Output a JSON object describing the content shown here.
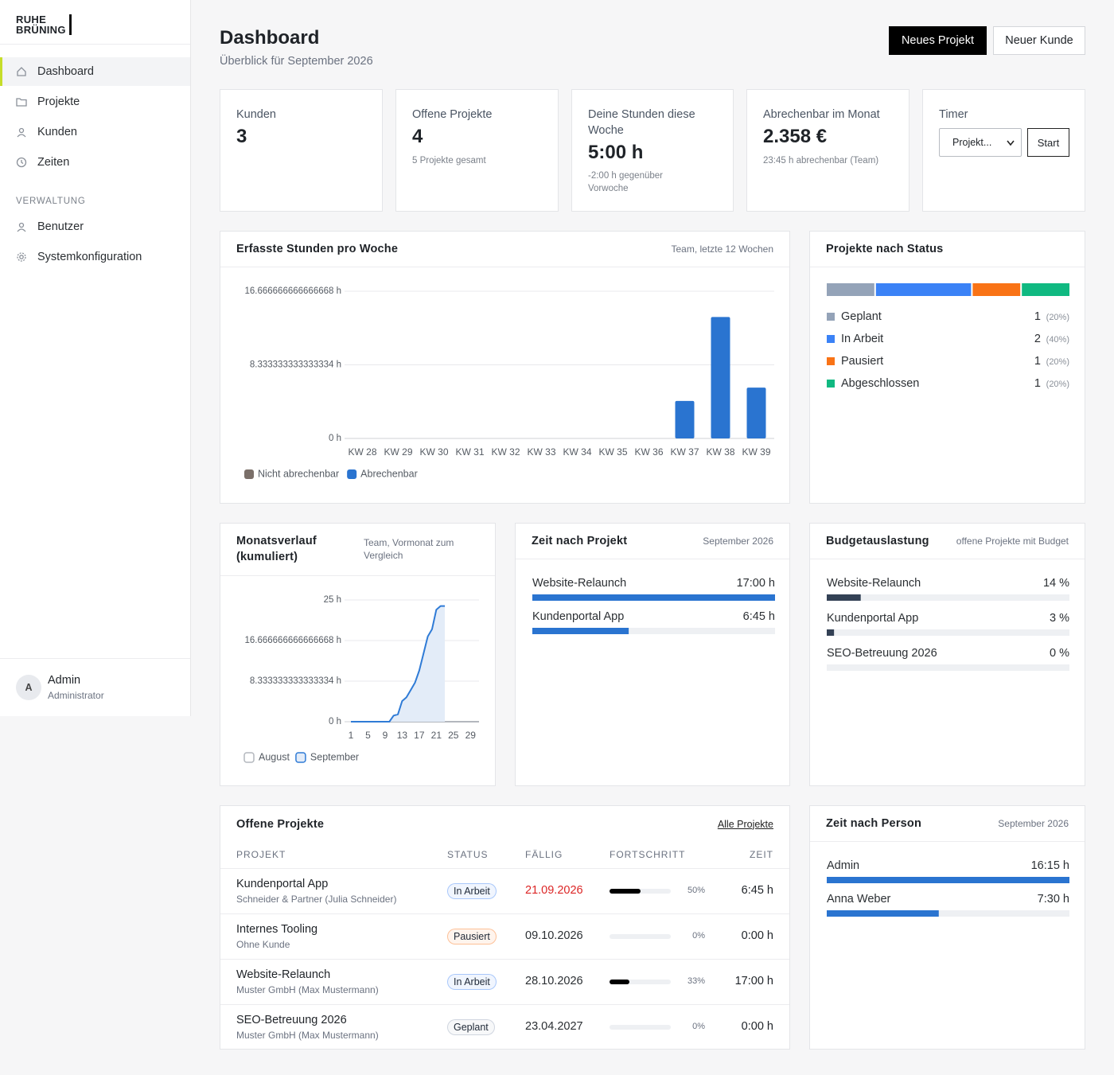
{
  "sidebar": {
    "logo": [
      "RUHE",
      "BRÜNING"
    ],
    "nav": [
      "Dashboard",
      "Projekte",
      "Kunden",
      "Zeiten"
    ],
    "section": "VERWALTUNG",
    "admin_nav": [
      "Benutzer",
      "Systemkonfiguration"
    ],
    "user": {
      "initial": "A",
      "name": "Admin",
      "role": "Administrator"
    }
  },
  "header": {
    "title": "Dashboard",
    "subtitle": "Überblick für September 2026",
    "buttons": [
      "Neues Projekt",
      "Neuer Kunde"
    ]
  },
  "kpis": [
    {
      "label": "Kunden",
      "value": "3"
    },
    {
      "label": "Offene Projekte",
      "value": "4",
      "note": "5 Projekte gesamt"
    },
    {
      "label": "Deine Stunden diese Woche",
      "value": "5:00 h",
      "note": "-2:00 h gegenüber Vorwoche"
    },
    {
      "label": "Abrechenbar im Monat",
      "value": "2.358 €",
      "note": "23:45 h abrechenbar (Team)"
    }
  ],
  "timer": {
    "label": "Timer",
    "select": "Projekt...",
    "button": "Start"
  },
  "chart_data": [
    {
      "type": "bar",
      "title": "Erfasste Stunden pro Woche",
      "subtitle": "Team, letzte 12 Wochen",
      "categories": [
        "KW 28",
        "KW 29",
        "KW 30",
        "KW 31",
        "KW 32",
        "KW 33",
        "KW 34",
        "KW 35",
        "KW 36",
        "KW 37",
        "KW 38",
        "KW 39"
      ],
      "series": [
        {
          "name": "Nicht abrechenbar",
          "color": "#7a6f69",
          "values": [
            0,
            0,
            0,
            0,
            0,
            0,
            0,
            0,
            0,
            0,
            0,
            0
          ]
        },
        {
          "name": "Abrechenbar",
          "color": "#2a74d0",
          "values": [
            0,
            0,
            0,
            0,
            0,
            0,
            0,
            0,
            0,
            4.25,
            13.75,
            5.75
          ]
        }
      ],
      "ylim": [
        0,
        16.666666666666668
      ],
      "yticks": [
        {
          "value": 0,
          "label": "0 h"
        },
        {
          "value": 8.333333333333334,
          "label": "8.333333333333334 h"
        },
        {
          "value": 16.666666666666668,
          "label": "16.666666666666668 h"
        }
      ],
      "grid": true,
      "legend": "bottom-left"
    },
    {
      "type": "proportion",
      "title": "Projekte nach Status",
      "categories": [
        "Geplant",
        "In Arbeit",
        "Pausiert",
        "Abgeschlossen"
      ],
      "values": [
        1,
        2,
        1,
        1
      ],
      "percent_labels": [
        "(20%)",
        "(40%)",
        "(20%)",
        "(20%)"
      ],
      "colors": [
        "#94a3b8",
        "#3b82f6",
        "#f97316",
        "#10b981"
      ]
    },
    {
      "type": "line",
      "title": "Monatsverlauf (kumuliert)",
      "subtitle": "Team, Vormonat zum Vergleich",
      "series": [
        {
          "name": "August",
          "color": "#b3b7bd",
          "x": [
            1,
            2,
            3,
            4,
            5,
            6,
            7,
            8,
            9,
            10,
            11,
            12,
            13,
            14,
            15,
            16,
            17,
            18,
            19,
            20,
            21,
            22,
            23,
            24,
            25,
            26,
            27,
            28,
            29,
            30,
            31
          ],
          "values": [
            0,
            0,
            0,
            0,
            0,
            0,
            0,
            0,
            0,
            0,
            0,
            0,
            0,
            0,
            0,
            0,
            0,
            0,
            0,
            0,
            0,
            0,
            0,
            0,
            0,
            0,
            0,
            0,
            0,
            0,
            0
          ]
        },
        {
          "name": "September",
          "color": "#2f7bd6",
          "fill": "#e3ecf8",
          "x": [
            1,
            2,
            3,
            4,
            5,
            6,
            7,
            8,
            9,
            10,
            11,
            12,
            13,
            14,
            15,
            16,
            17,
            18,
            19,
            20,
            21,
            22,
            23
          ],
          "values": [
            0,
            0,
            0,
            0,
            0,
            0,
            0,
            0,
            0,
            0,
            1.25,
            1.5,
            4.25,
            5,
            6.5,
            8,
            10.5,
            14,
            17.5,
            19,
            23,
            23.75,
            23.75
          ]
        }
      ],
      "xlim": [
        1,
        31
      ],
      "xticks": [
        1,
        5,
        9,
        13,
        17,
        21,
        25,
        29
      ],
      "ylim": [
        0,
        25
      ],
      "yticks": [
        {
          "value": 0,
          "label": "0 h"
        },
        {
          "value": 8.333333333333334,
          "label": "8.333333333333334 h"
        },
        {
          "value": 16.666666666666668,
          "label": "16.666666666666668 h"
        },
        {
          "value": 25,
          "label": "25 h"
        }
      ],
      "grid": true,
      "legend": "bottom-left"
    },
    {
      "type": "hbar",
      "title": "Zeit nach Projekt",
      "subtitle": "September 2026",
      "categories": [
        "Website-Relaunch",
        "Kundenportal App"
      ],
      "values": [
        17,
        6.75
      ],
      "value_labels": [
        "17:00 h",
        "6:45 h"
      ],
      "color": "#2a74d0"
    },
    {
      "type": "hbar",
      "title": "Budgetauslastung",
      "subtitle": "offene Projekte mit Budget",
      "categories": [
        "Website-Relaunch",
        "Kundenportal App",
        "SEO-Betreuung 2026"
      ],
      "values": [
        14,
        3,
        0
      ],
      "value_labels": [
        "14 %",
        "3 %",
        "0 %"
      ],
      "xlim": [
        0,
        100
      ],
      "color": "#334155"
    },
    {
      "type": "hbar",
      "title": "Zeit nach Person",
      "subtitle": "September 2026",
      "categories": [
        "Admin",
        "Anna Weber"
      ],
      "values": [
        16.25,
        7.5
      ],
      "value_labels": [
        "16:15 h",
        "7:30 h"
      ],
      "color": "#2a74d0"
    }
  ],
  "projects_table": {
    "title": "Offene Projekte",
    "link": "Alle Projekte",
    "columns": [
      "PROJEKT",
      "STATUS",
      "FÄLLIG",
      "FORTSCHRITT",
      "ZEIT"
    ],
    "rows": [
      {
        "name": "Kundenportal App",
        "client": "Schneider & Partner (Julia Schneider)",
        "status": "In Arbeit",
        "due": "21.09.2026",
        "overdue": true,
        "progress": 50,
        "progress_label": "50%",
        "time": "6:45 h"
      },
      {
        "name": "Internes Tooling",
        "client": "Ohne Kunde",
        "status": "Pausiert",
        "due": "09.10.2026",
        "overdue": false,
        "progress": 0,
        "progress_label": "0%",
        "time": "0:00 h"
      },
      {
        "name": "Website-Relaunch",
        "client": "Muster GmbH (Max Mustermann)",
        "status": "In Arbeit",
        "due": "28.10.2026",
        "overdue": false,
        "progress": 33,
        "progress_label": "33%",
        "time": "17:00 h"
      },
      {
        "name": "SEO-Betreuung 2026",
        "client": "Muster GmbH (Max Mustermann)",
        "status": "Geplant",
        "due": "23.04.2027",
        "overdue": false,
        "progress": 0,
        "progress_label": "0%",
        "time": "0:00 h"
      }
    ]
  }
}
